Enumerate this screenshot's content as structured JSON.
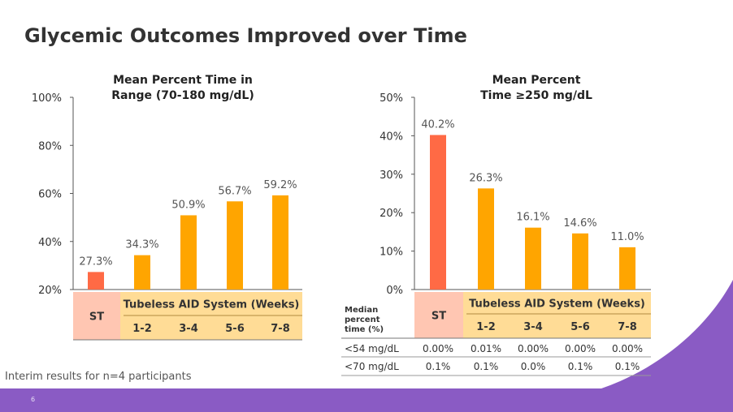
{
  "title": "Glycemic Outcomes Improved over Time",
  "footnote": "Interim results for n=4 participants",
  "page_number": "6",
  "colors": {
    "st_bar": "#ff6a45",
    "aid_bar": "#ffa500",
    "header_fill": "#ffdc96",
    "st_fill": "#ffc6b2",
    "purple": "#8a5bc4"
  },
  "chart_data": [
    {
      "type": "bar",
      "title": "Mean Percent Time in Range (70-180 mg/dL)",
      "title_lines": [
        "Mean Percent Time in",
        "Range (70-180 mg/dL)"
      ],
      "categories": [
        "ST",
        "1-2",
        "3-4",
        "5-6",
        "7-8"
      ],
      "values": [
        27.3,
        34.3,
        50.9,
        56.7,
        59.2
      ],
      "value_labels": [
        "27.3%",
        "34.3%",
        "50.9%",
        "56.7%",
        "59.2%"
      ],
      "ylim": [
        20,
        100
      ],
      "yticks": [
        "20%",
        "40%",
        "60%",
        "80%",
        "100%"
      ],
      "group_label": "Tubeless AID System (Weeks)",
      "baseline_label": "ST"
    },
    {
      "type": "bar",
      "title": "Mean Percent Time ≥250 mg/dL",
      "title_lines": [
        "Mean Percent",
        "Time ≥250 mg/dL"
      ],
      "categories": [
        "ST",
        "1-2",
        "3-4",
        "5-6",
        "7-8"
      ],
      "values": [
        40.2,
        26.3,
        16.1,
        14.6,
        11.0
      ],
      "value_labels": [
        "40.2%",
        "26.3%",
        "16.1%",
        "14.6%",
        "11.0%"
      ],
      "ylim": [
        0,
        50
      ],
      "yticks": [
        "0%",
        "10%",
        "20%",
        "30%",
        "40%",
        "50%"
      ],
      "group_label": "Tubeless AID System (Weeks)",
      "baseline_label": "ST",
      "row_header_label": [
        "Median",
        "percent",
        "time (%)"
      ],
      "table_rows": [
        {
          "label": "<54 mg/dL",
          "values": [
            "0.00%",
            "0.01%",
            "0.00%",
            "0.00%",
            "0.00%"
          ]
        },
        {
          "label": "<70 mg/dL",
          "values": [
            "0.1%",
            "0.1%",
            "0.0%",
            "0.1%",
            "0.1%"
          ]
        }
      ]
    }
  ]
}
